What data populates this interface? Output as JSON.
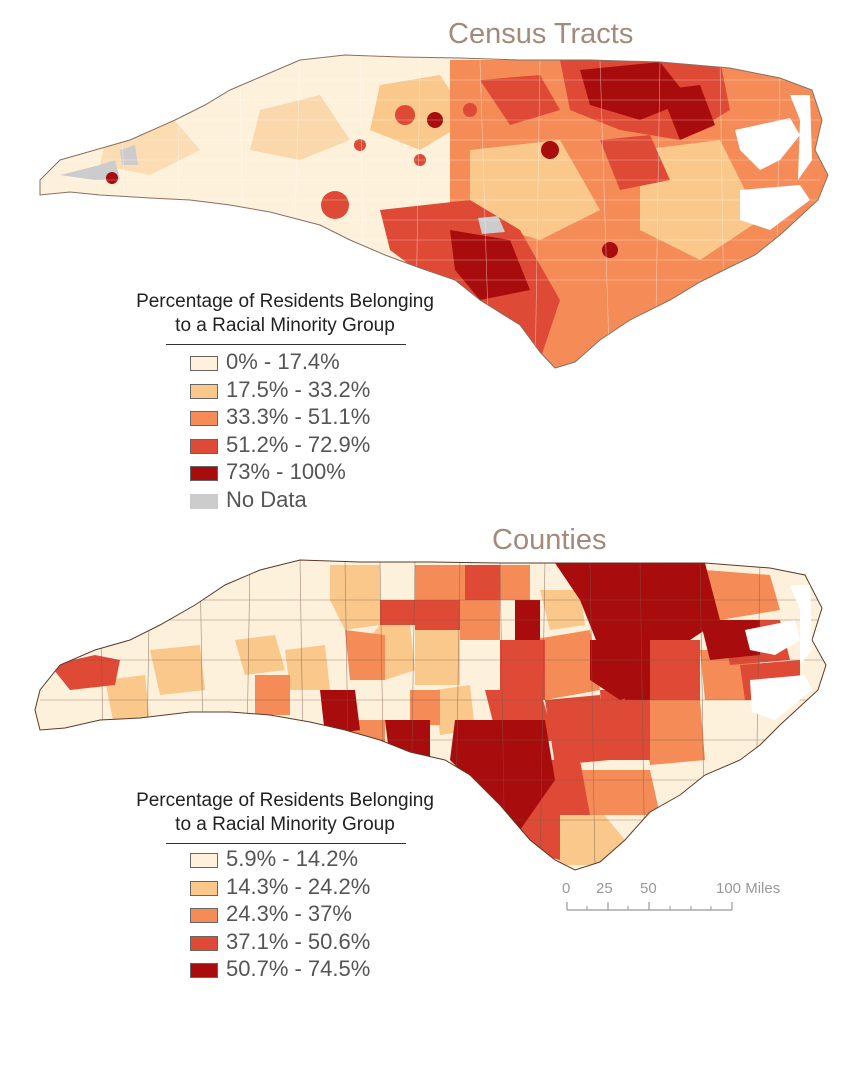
{
  "top_map": {
    "title": "Census Tracts",
    "legend": {
      "heading_line1": "Percentage of Residents Belonging",
      "heading_line2": "to a Racial Minority Group",
      "classes": [
        {
          "label": "0% - 17.4%",
          "color": "#fdf1dc"
        },
        {
          "label": "17.5% - 33.2%",
          "color": "#f9c88a"
        },
        {
          "label": "33.3% - 51.1%",
          "color": "#f58c58"
        },
        {
          "label": "51.2% - 72.9%",
          "color": "#de4a35"
        },
        {
          "label": "73% - 100%",
          "color": "#a90c0c"
        },
        {
          "label": "No Data",
          "color": "#cccccc"
        }
      ]
    }
  },
  "bottom_map": {
    "title": "Counties",
    "legend": {
      "heading_line1": "Percentage of Residents Belonging",
      "heading_line2": "to a Racial Minority Group",
      "classes": [
        {
          "label": "5.9% - 14.2%",
          "color": "#fdf1dc"
        },
        {
          "label": "14.3% - 24.2%",
          "color": "#f9c88a"
        },
        {
          "label": "24.3% - 37%",
          "color": "#f58c58"
        },
        {
          "label": "37.1% - 50.6%",
          "color": "#de4a35"
        },
        {
          "label": "50.7% - 74.5%",
          "color": "#a90c0c"
        }
      ]
    }
  },
  "scale_bar": {
    "ticks": [
      "0",
      "25",
      "50",
      "100 Miles"
    ]
  }
}
